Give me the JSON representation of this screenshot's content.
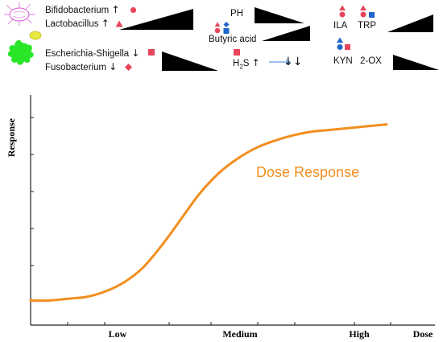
{
  "colors": {
    "curve": "#F28E1E",
    "marker_red": "#E8455A",
    "marker_blue": "#1E66C8",
    "bacteria_pink": "#D65AD6",
    "bacteria_yellow": "#E9E83C",
    "bacteria_green": "#29E629",
    "wedge": "#000000",
    "axis": "#222222"
  },
  "legend": {
    "bacteria_up": [
      {
        "label": "Bifidobacterium",
        "arrow": "↑",
        "marker": "red-circle"
      },
      {
        "label": "Lactobacillus",
        "arrow": "↑",
        "marker": "red-triangle"
      }
    ],
    "bacteria_down": [
      {
        "label": "Escherichia-Shigella",
        "arrow": "↓",
        "marker": "red-square"
      },
      {
        "label": "Fusobacterium",
        "arrow": "↓",
        "marker": "red-diamond"
      }
    ],
    "ph_label": "PH",
    "butyric_label": "Butyric acid",
    "h2s_label": "H",
    "h2s_subscript": "2",
    "h2s_suffix": "S",
    "h2s_arrows": "↑",
    "h2s_down_arrows": "↓↓",
    "ila_label": "ILA",
    "trp_label": "TRP",
    "kyn_label": "KYN",
    "twoox_label": "2-OX"
  },
  "chart_data": {
    "type": "line",
    "ylabel": "Response",
    "xlabel": "Dose",
    "categories": [
      "Low",
      "Medium",
      "High"
    ],
    "series": [
      {
        "name": "Dose Response",
        "x": [
          0,
          0.5,
          1,
          1.5,
          2,
          2.5,
          3,
          3.5,
          4,
          4.5,
          5,
          5.5,
          6,
          6.5,
          7,
          7.5,
          8,
          8.5,
          9,
          9.5
        ],
        "values": [
          0.02,
          0.02,
          0.03,
          0.04,
          0.07,
          0.12,
          0.2,
          0.32,
          0.46,
          0.6,
          0.71,
          0.79,
          0.85,
          0.89,
          0.92,
          0.94,
          0.95,
          0.96,
          0.97,
          0.98
        ]
      }
    ],
    "annotation": "Dose Response",
    "grid": false
  }
}
